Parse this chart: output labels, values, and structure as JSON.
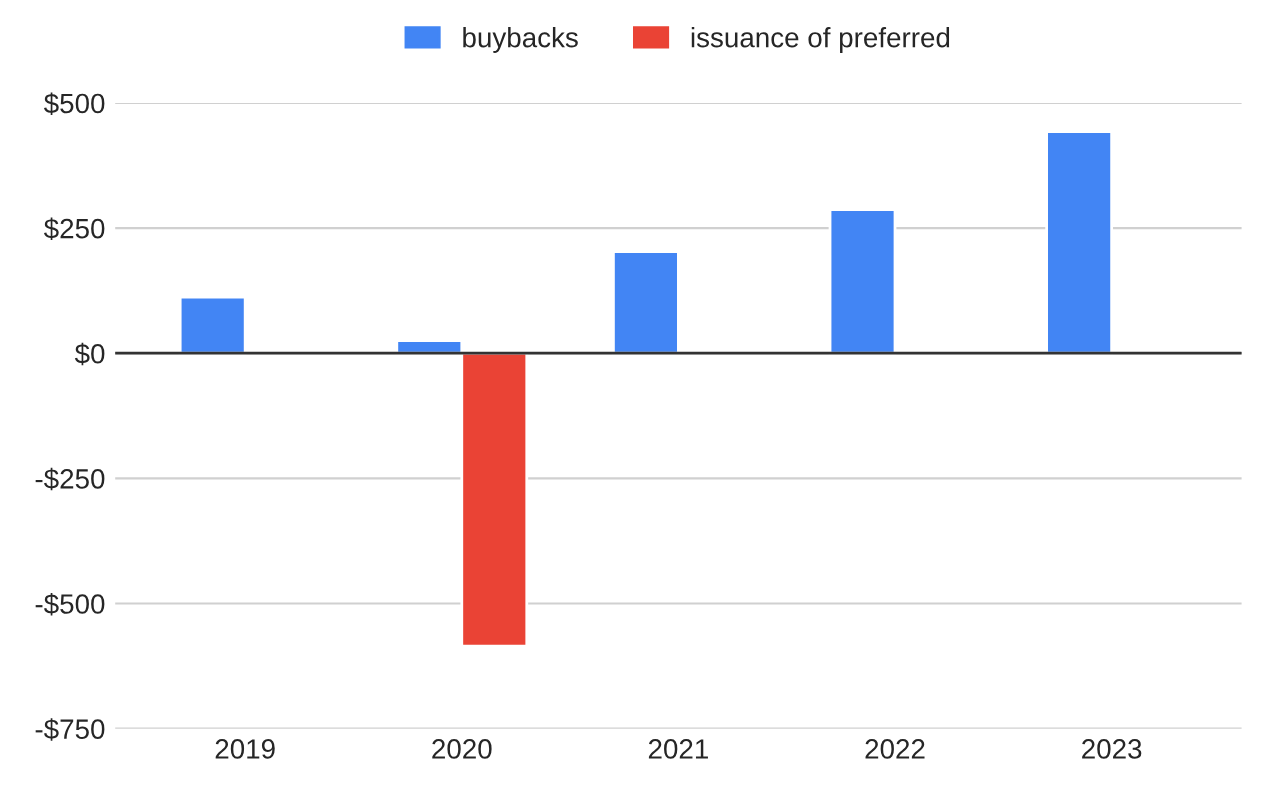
{
  "chart_data": {
    "type": "bar",
    "categories": [
      "2019",
      "2020",
      "2021",
      "2022",
      "2023"
    ],
    "series": [
      {
        "name": "buybacks",
        "color": "#4285f4",
        "values": [
          112,
          25,
          203,
          287,
          443
        ]
      },
      {
        "name": "issuance of preferred",
        "color": "#ea4335",
        "values": [
          null,
          -585,
          null,
          null,
          null
        ]
      }
    ],
    "ylim": [
      -750,
      500
    ],
    "yticks": [
      {
        "value": -750,
        "label": "-$750"
      },
      {
        "value": -500,
        "label": "-$500"
      },
      {
        "value": -250,
        "label": "-$250"
      },
      {
        "value": 0,
        "label": "$0"
      },
      {
        "value": 250,
        "label": "$250"
      },
      {
        "value": 500,
        "label": "$500"
      }
    ],
    "grid": "y",
    "legend": "top"
  }
}
